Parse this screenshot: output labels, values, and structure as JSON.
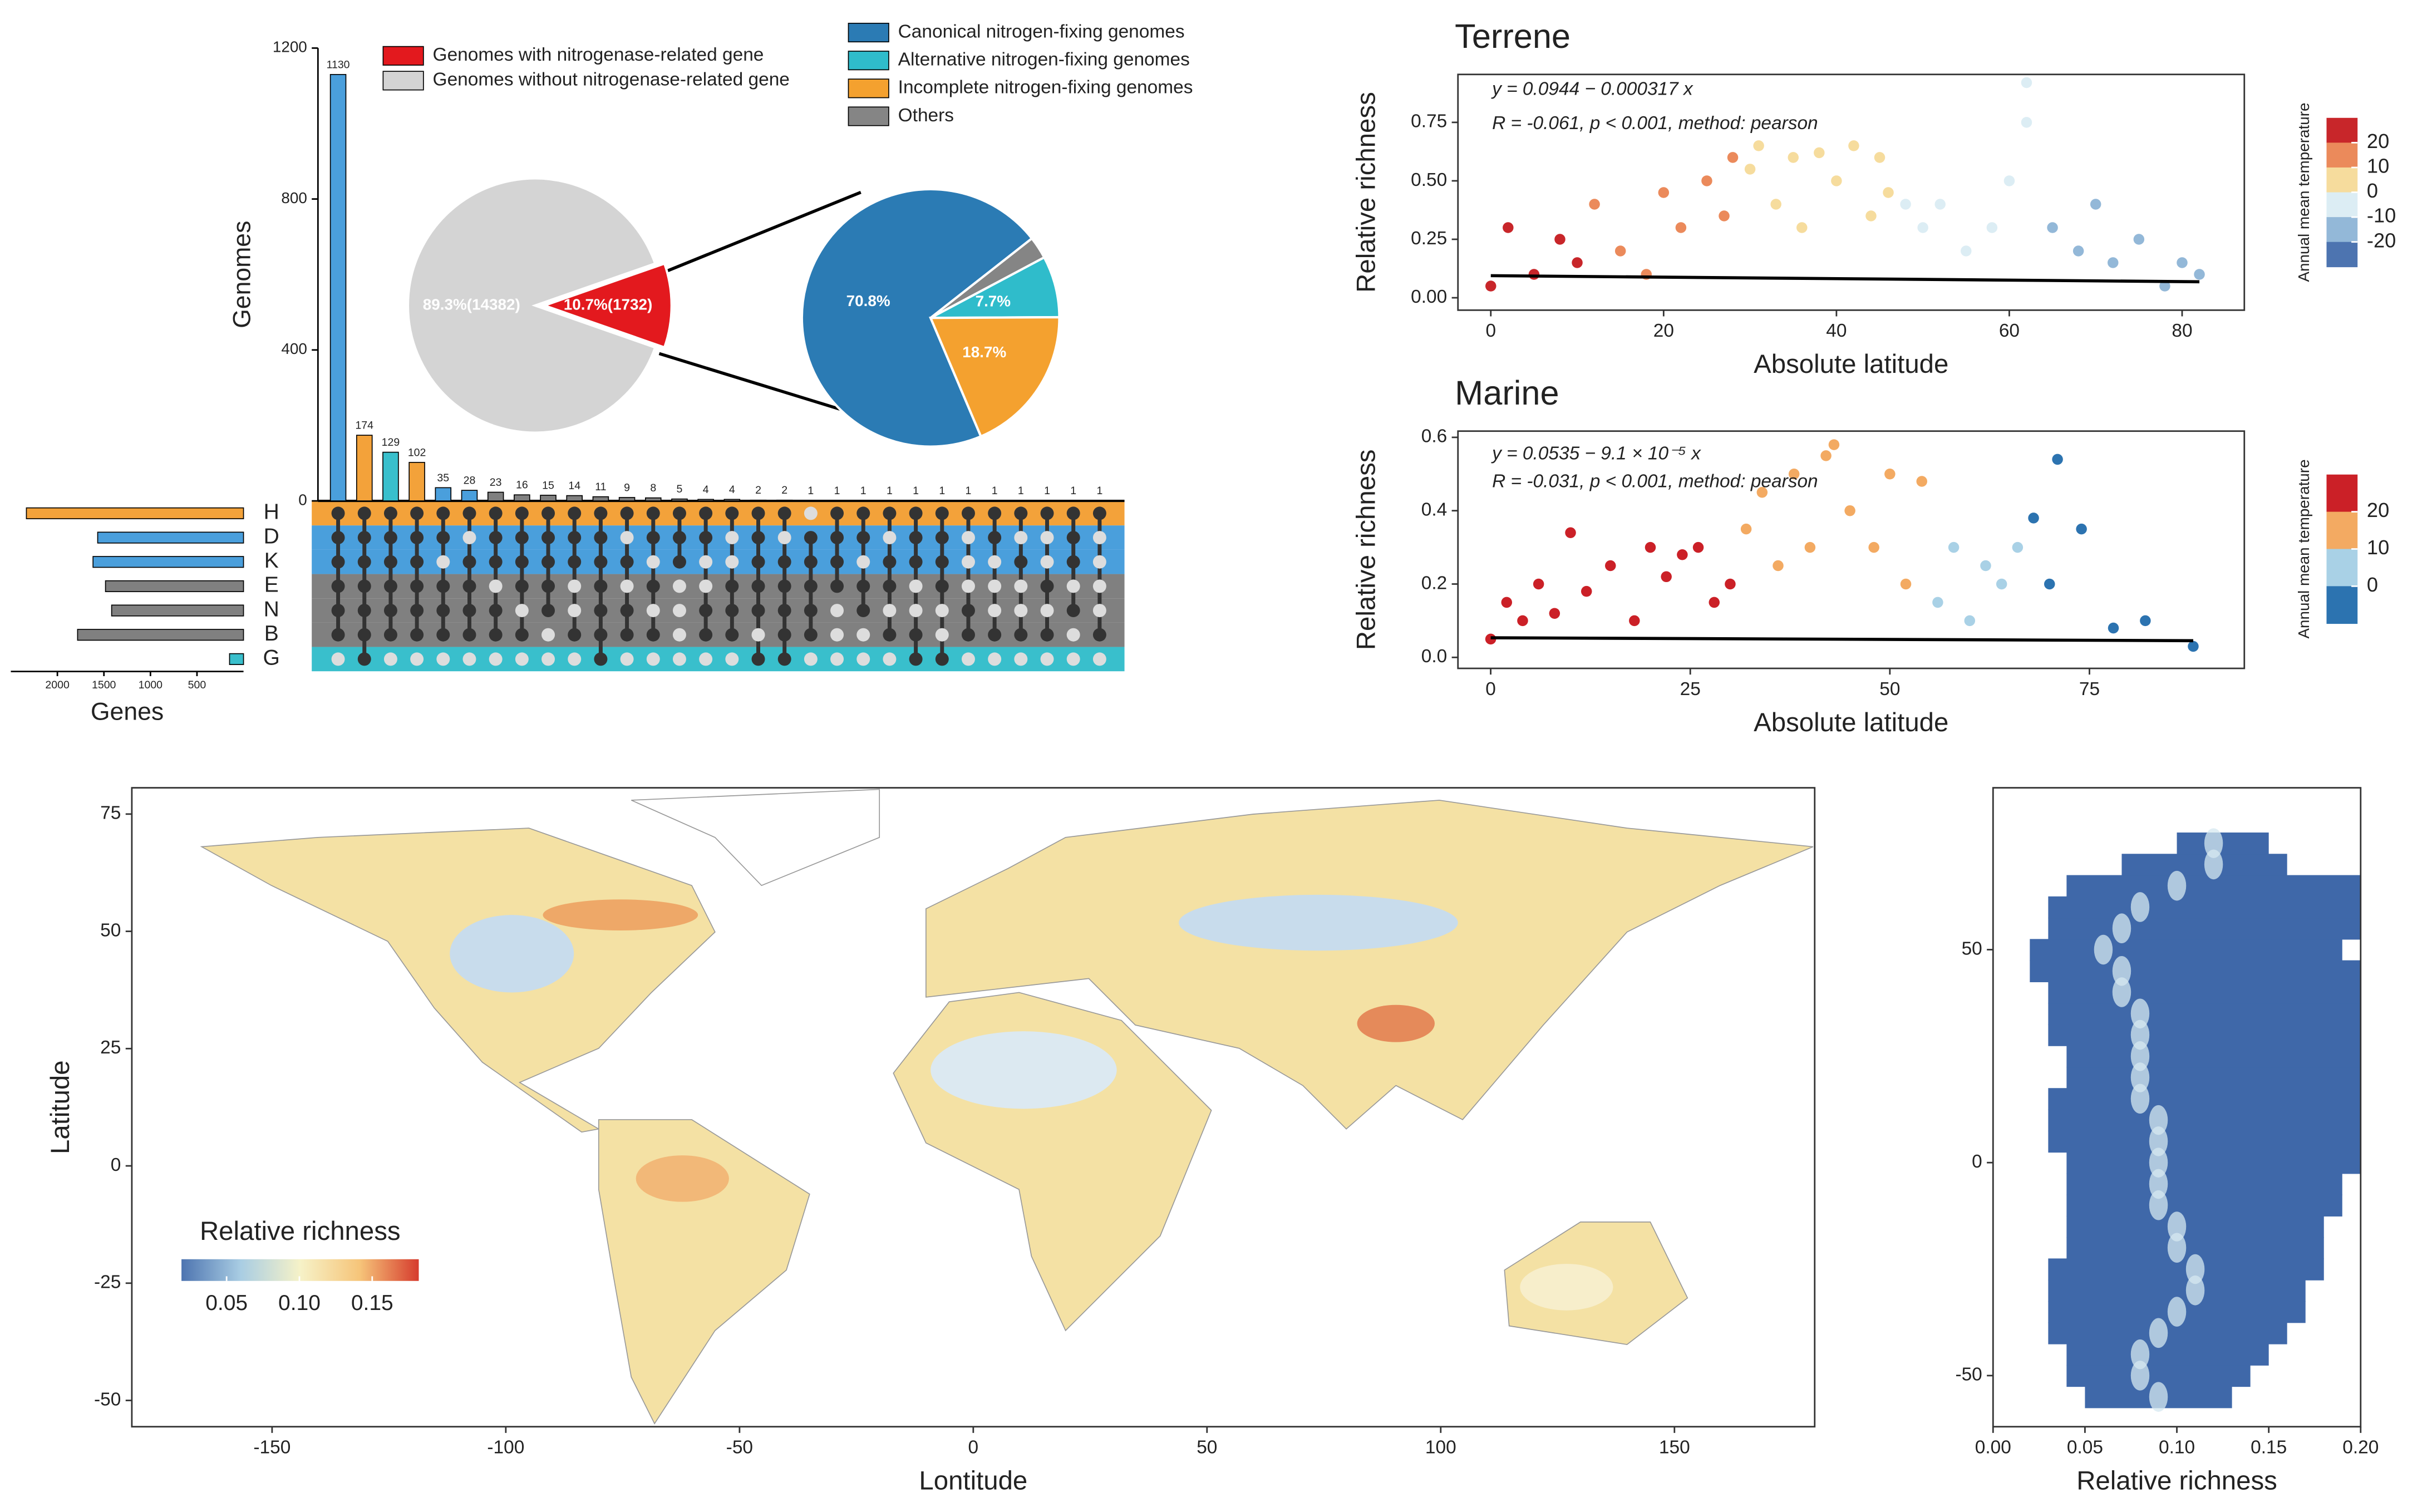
{
  "chart_data": [
    {
      "type": "upset",
      "ylabel": "Genomes",
      "ylim": [
        0,
        1200
      ],
      "yticks": [
        0,
        400,
        800,
        1200
      ],
      "values": [
        1130,
        174,
        129,
        102,
        35,
        28,
        23,
        16,
        15,
        14,
        11,
        9,
        8,
        5,
        4,
        4,
        2,
        2,
        1,
        1,
        1,
        1,
        1,
        1,
        1,
        1,
        1,
        1,
        1,
        1
      ],
      "colors": [
        "#4a9fdc",
        "#f3a23a",
        "#39bfcc",
        "#f3a23a",
        "#4a9fdc",
        "#4a9fdc",
        "#808080",
        "#808080",
        "#808080",
        "#808080",
        "#808080",
        "#808080",
        "#808080",
        "#808080",
        "#808080",
        "#808080",
        "#808080",
        "#808080",
        "#808080",
        "#808080",
        "#808080",
        "#808080",
        "#808080",
        "#808080",
        "#808080",
        "#808080",
        "#808080",
        "#808080",
        "#808080",
        "#808080"
      ],
      "membership": [
        [
          0,
          1,
          2,
          3,
          4,
          5
        ],
        [
          0,
          1,
          2,
          3,
          4,
          5,
          6
        ],
        [
          0,
          1,
          2,
          3,
          4,
          5
        ],
        [
          0,
          1,
          2,
          3,
          4,
          5
        ],
        [
          0,
          1,
          3,
          4,
          5
        ],
        [
          0,
          2,
          3,
          4,
          5
        ],
        [
          0,
          1,
          2,
          4,
          5
        ],
        [
          0,
          1,
          2,
          3,
          5
        ],
        [
          0,
          1,
          2,
          3,
          4
        ],
        [
          0,
          1,
          2,
          5
        ],
        [
          0,
          1,
          2,
          3,
          4,
          5,
          6
        ],
        [
          0,
          2,
          4,
          5
        ],
        [
          0,
          1,
          3,
          5
        ],
        [
          0,
          1,
          2
        ],
        [
          0,
          1,
          4,
          5
        ],
        [
          0,
          3,
          4,
          5
        ],
        [
          0,
          1,
          2,
          3,
          4,
          6
        ],
        [
          0,
          2,
          3,
          4,
          5,
          6
        ],
        [
          1,
          2,
          3,
          4,
          5
        ],
        [
          0,
          1,
          2,
          3
        ],
        [
          0,
          1,
          3,
          4
        ],
        [
          0,
          2,
          3,
          5
        ],
        [
          0,
          1,
          2,
          5,
          6
        ],
        [
          0,
          1,
          2,
          3,
          6
        ],
        [
          0,
          4,
          5
        ],
        [
          0,
          1,
          5
        ],
        [
          0,
          2,
          5
        ],
        [
          0,
          3,
          5
        ],
        [
          0,
          1,
          2,
          4
        ],
        [
          0,
          5
        ]
      ],
      "sets": [
        "H",
        "D",
        "K",
        "E",
        "N",
        "B",
        "G"
      ],
      "set_sizes": [
        2333,
        1567,
        1617,
        1483,
        1417,
        1783,
        150
      ],
      "set_colors": [
        "#f3a23a",
        "#4a9fdc",
        "#4a9fdc",
        "#808080",
        "#808080",
        "#808080",
        "#39bfcc"
      ],
      "set_xlabel": "Genes",
      "set_xlim": [
        0,
        2500
      ],
      "set_xticks": [
        2000,
        1500,
        1000,
        500
      ]
    },
    {
      "type": "pie",
      "labels": [
        "Genomes with nitrogenase-related gene",
        "Genomes without nitrogenase-related gene"
      ],
      "values": [
        10.7,
        89.3
      ],
      "value_labels": [
        "10.7%(1732)",
        "89.3%(14382)"
      ],
      "colors": [
        "#e3191e",
        "#d4d4d4"
      ]
    },
    {
      "type": "pie",
      "labels": [
        "Canonical nitrogen-fixing genomes",
        "Alternative nitrogen-fixing genomes",
        "Incomplete nitrogen-fixing genomes",
        "Others"
      ],
      "values": [
        70.8,
        7.7,
        18.7,
        2.8
      ],
      "value_labels": [
        "70.8%",
        "7.7%",
        "18.7%",
        null
      ],
      "colors": [
        "#2b7bb4",
        "#2fbccb",
        "#f4a12f",
        "#858585"
      ]
    },
    {
      "type": "scatter",
      "title": "Terrene",
      "xlabel": "Absolute latitude",
      "ylabel": "Relative richness",
      "xlim": [
        -3.8,
        87.2
      ],
      "xticks": [
        0,
        20,
        40,
        60,
        80
      ],
      "ylim": [
        -0.053,
        0.955
      ],
      "yticks": [
        {
          "value": 0,
          "label": "0.00"
        },
        {
          "value": 0.25,
          "label": "0.25"
        },
        {
          "value": 0.5,
          "label": "0.50"
        },
        {
          "value": 0.75,
          "label": "0.75"
        }
      ],
      "x": [
        0,
        2,
        5,
        8,
        10,
        12,
        15,
        18,
        20,
        22,
        25,
        27,
        28,
        30,
        31,
        33,
        35,
        36,
        38,
        40,
        42,
        44,
        45,
        46,
        48,
        50,
        52,
        55,
        58,
        60,
        62,
        62,
        65,
        68,
        70,
        72,
        75,
        78,
        80,
        82
      ],
      "values": [
        0.05,
        0.3,
        0.1,
        0.25,
        0.15,
        0.4,
        0.2,
        0.1,
        0.45,
        0.3,
        0.5,
        0.35,
        0.6,
        0.55,
        0.65,
        0.4,
        0.6,
        0.3,
        0.62,
        0.5,
        0.65,
        0.35,
        0.6,
        0.45,
        0.4,
        0.3,
        0.4,
        0.2,
        0.3,
        0.5,
        0.92,
        0.75,
        0.3,
        0.2,
        0.4,
        0.15,
        0.25,
        0.05,
        0.15,
        0.1
      ],
      "temperature": [
        25,
        24,
        22,
        21,
        20,
        19,
        17,
        16,
        15,
        14,
        12,
        11,
        10,
        9,
        8,
        7,
        6,
        5,
        4,
        3,
        2,
        1,
        0,
        0,
        -1,
        -2,
        -3,
        -5,
        -6,
        -8,
        -9,
        -9,
        -11,
        -13,
        -14,
        -15,
        -17,
        -18,
        -20,
        -20
      ],
      "fit": {
        "intercept": 0.0944,
        "slope": -0.000317
      },
      "annotations": [
        "y = 0.0944 − 0.000317 x",
        "R = -0.061, p < 0.001, method: pearson"
      ],
      "colorbar": {
        "title": "Annual mean temperature",
        "ticks": [
          20,
          10,
          0,
          -10,
          -20
        ],
        "colors": [
          "#c8262a",
          "#eb8a5b",
          "#f6dc9d",
          "#dcedf4",
          "#93b8d8",
          "#4d74b0"
        ]
      }
    },
    {
      "type": "scatter",
      "title": "Marine",
      "xlabel": "Absolute latitude",
      "ylabel": "Relative richness",
      "xlim": [
        -4.1,
        94.4
      ],
      "xticks": [
        0,
        25,
        50,
        75
      ],
      "ylim": [
        -0.03,
        0.617
      ],
      "yticks": [
        {
          "value": 0,
          "label": "0.0"
        },
        0.2,
        0.4,
        0.6
      ],
      "x": [
        0,
        2,
        4,
        6,
        8,
        10,
        12,
        15,
        18,
        20,
        22,
        24,
        26,
        28,
        30,
        32,
        34,
        36,
        38,
        40,
        42,
        43,
        45,
        48,
        50,
        52,
        54,
        56,
        58,
        60,
        62,
        64,
        66,
        68,
        70,
        71,
        74,
        78,
        82,
        88
      ],
      "values": [
        0.05,
        0.15,
        0.1,
        0.2,
        0.12,
        0.34,
        0.18,
        0.25,
        0.1,
        0.3,
        0.22,
        0.28,
        0.3,
        0.15,
        0.2,
        0.35,
        0.45,
        0.25,
        0.5,
        0.3,
        0.55,
        0.58,
        0.4,
        0.3,
        0.5,
        0.2,
        0.48,
        0.15,
        0.3,
        0.1,
        0.25,
        0.2,
        0.3,
        0.38,
        0.2,
        0.54,
        0.35,
        0.08,
        0.1,
        0.03
      ],
      "temperature": [
        28,
        28,
        28,
        28,
        28,
        28,
        28,
        28,
        28,
        28,
        28,
        28,
        28,
        28,
        28,
        15,
        15,
        15,
        15,
        15,
        15,
        15,
        15,
        15,
        15,
        15,
        15,
        5,
        5,
        5,
        5,
        5,
        5,
        -2,
        -2,
        -2,
        -2,
        -2,
        -2,
        -2
      ],
      "fit": {
        "intercept": 0.0535,
        "slope": -9.1e-05
      },
      "annotations": [
        "y = 0.0535 − 9.1 × 10⁻⁵ x",
        "R = -0.031, p < 0.001, method: pearson"
      ],
      "colorbar": {
        "title": "Annual mean temperature",
        "ticks": [
          20,
          10,
          0
        ],
        "colors": [
          "#cb2027",
          "#f3aa62",
          "#a9d1e6",
          "#2c73b0"
        ]
      }
    },
    {
      "type": "map",
      "xlabel": "Lontitude",
      "ylabel": "Latitude",
      "xlim": [
        -180,
        180
      ],
      "xticks": [
        -150,
        -100,
        -50,
        0,
        50,
        100,
        150
      ],
      "ylim": [
        -55.6,
        80.6
      ],
      "yticks": [
        -50,
        -25,
        0,
        25,
        50,
        75
      ],
      "colorbar": {
        "title": "Relative richness",
        "lim": [
          0.019,
          0.182
        ],
        "ticks": [
          0.05,
          {
            "value": 0.1,
            "label": "0.10"
          },
          0.15
        ],
        "colors": [
          "#4d74b0",
          "#a9cde3",
          "#f6f2c8",
          "#f6c57a",
          "#d63b2d"
        ]
      }
    },
    {
      "type": "heatmap",
      "xlabel": "Relative richness",
      "xlim": [
        0,
        0.2
      ],
      "xticks": [
        {
          "value": 0,
          "label": "0.00"
        },
        0.05,
        {
          "value": 0.1,
          "label": "0.10"
        },
        0.15,
        {
          "value": 0.2,
          "label": "0.20"
        }
      ],
      "ylim": [
        -62,
        88
      ],
      "yticks": [
        -50,
        0,
        50
      ],
      "y": [
        -55,
        -50,
        -45,
        -40,
        -35,
        -30,
        -25,
        -20,
        -15,
        -10,
        -5,
        0,
        5,
        10,
        15,
        20,
        25,
        30,
        35,
        40,
        45,
        50,
        55,
        60,
        65,
        70,
        75
      ],
      "x_min": [
        0.05,
        0.04,
        0.04,
        0.03,
        0.03,
        0.03,
        0.03,
        0.04,
        0.04,
        0.04,
        0.04,
        0.04,
        0.03,
        0.03,
        0.03,
        0.04,
        0.04,
        0.03,
        0.03,
        0.03,
        0.02,
        0.02,
        0.03,
        0.03,
        0.04,
        0.07,
        0.1
      ],
      "x_max": [
        0.13,
        0.14,
        0.15,
        0.16,
        0.17,
        0.17,
        0.18,
        0.18,
        0.18,
        0.19,
        0.19,
        0.2,
        0.2,
        0.2,
        0.2,
        0.2,
        0.2,
        0.2,
        0.2,
        0.2,
        0.2,
        0.19,
        0.2,
        0.2,
        0.2,
        0.16,
        0.15
      ],
      "x_peak": [
        0.09,
        0.08,
        0.08,
        0.09,
        0.1,
        0.11,
        0.11,
        0.1,
        0.1,
        0.09,
        0.09,
        0.09,
        0.09,
        0.09,
        0.08,
        0.08,
        0.08,
        0.08,
        0.08,
        0.07,
        0.07,
        0.06,
        0.07,
        0.08,
        0.1,
        0.12,
        0.12
      ],
      "color": "#3f68a9",
      "peak_color": "#d6e8f0"
    }
  ]
}
